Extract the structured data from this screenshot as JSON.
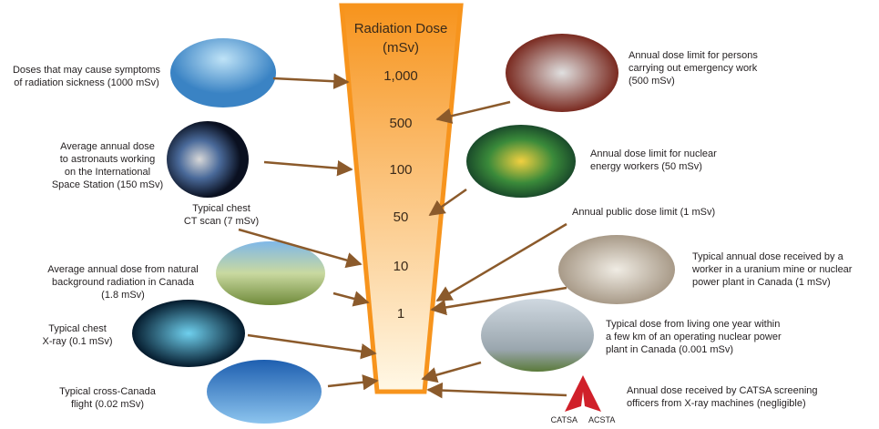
{
  "scale": {
    "title": "Radiation Dose",
    "unit": "(mSv)",
    "labels": [
      "1,000",
      "500",
      "100",
      "50",
      "10",
      "1"
    ]
  },
  "annotations": [
    {
      "lines": [
        "Doses that may cause symptoms",
        "of radiation sickness (1000 mSv)"
      ]
    },
    {
      "lines": [
        "Average annual dose",
        "to astronauts working",
        "on  the International",
        "Space Station (150 mSv)"
      ]
    },
    {
      "lines": [
        "Typical chest",
        "CT scan (7 mSv)"
      ]
    },
    {
      "lines": [
        "Average annual dose from natural",
        "background radiation in Canada",
        "(1.8 mSv)"
      ]
    },
    {
      "lines": [
        "Typical chest",
        "X-ray (0.1 mSv)"
      ]
    },
    {
      "lines": [
        "Typical cross-Canada",
        "flight (0.02 mSv)"
      ]
    },
    {
      "lines": [
        "Annual dose limit for persons",
        "carrying out emergency work",
        "(500 mSv)"
      ]
    },
    {
      "lines": [
        "Annual dose limit for nuclear",
        "energy workers (50 mSv)"
      ]
    },
    {
      "lines": [
        "Annual public dose limit (1 mSv)"
      ]
    },
    {
      "lines": [
        "Typical annual dose  received by a",
        "worker in a uranium mine or  nuclear",
        "power plant in Canada (1 mSv)"
      ]
    },
    {
      "lines": [
        "Typical dose from living one year within",
        "a few km of an operating nuclear power",
        "plant in Canada (0.001 mSv)"
      ]
    },
    {
      "lines": [
        "Annual dose received by CATSA screening",
        "officers from X-ray machines (negligible)"
      ]
    }
  ],
  "logo": {
    "left": "CATSA",
    "right": "ACSTA"
  }
}
